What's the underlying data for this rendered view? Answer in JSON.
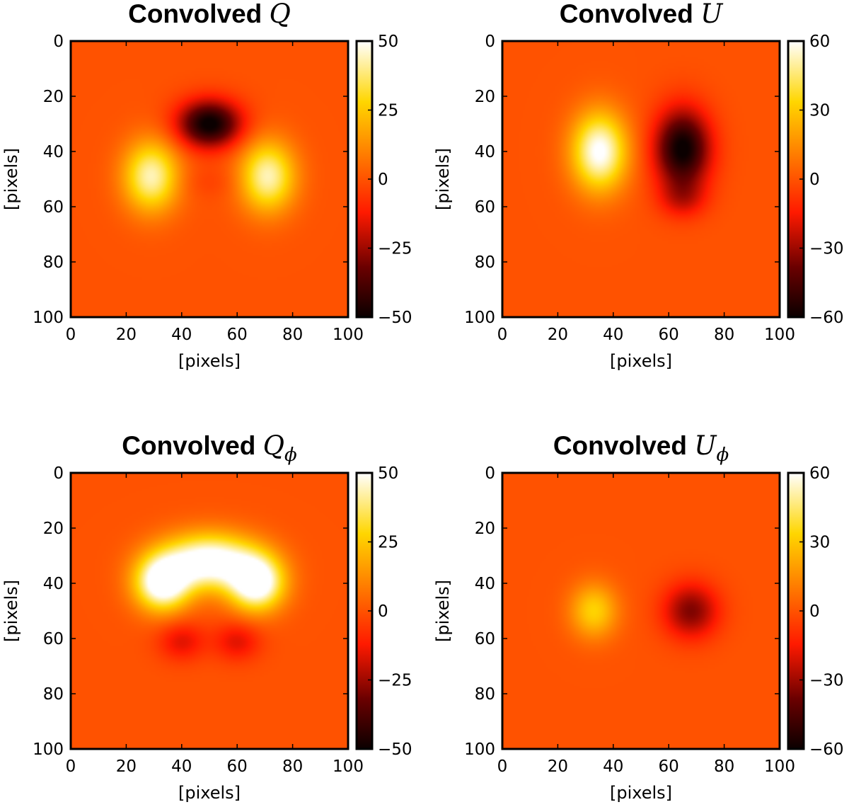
{
  "chart_data": [
    {
      "type": "heatmap",
      "title": "Convolved ",
      "symbol": "Q",
      "subscript": "",
      "xlabel": "[pixels]",
      "ylabel": "[pixels]",
      "xlim": [
        0,
        100
      ],
      "ylim": [
        100,
        0
      ],
      "xticks": [
        "0",
        "20",
        "40",
        "60",
        "80",
        "100"
      ],
      "yticks": [
        "0",
        "20",
        "40",
        "60",
        "80",
        "100"
      ],
      "colormap": "hot",
      "colorbar": {
        "vmin": -50,
        "vmax": 50,
        "ticks": [
          "50",
          "25",
          "0",
          "−25",
          "−50"
        ],
        "tick_values": [
          50,
          25,
          0,
          -25,
          -50
        ]
      },
      "features": [
        {
          "x": 50,
          "y": 30,
          "sx": 8,
          "sy": 6,
          "amp": -52
        },
        {
          "x": 29,
          "y": 49,
          "sx": 7,
          "sy": 9,
          "amp": 44
        },
        {
          "x": 71,
          "y": 49,
          "sx": 7,
          "sy": 9,
          "amp": 44
        },
        {
          "x": 50,
          "y": 51,
          "sx": 8,
          "sy": 4,
          "amp": -4
        }
      ]
    },
    {
      "type": "heatmap",
      "title": "Convolved ",
      "symbol": "U",
      "subscript": "",
      "xlabel": "[pixels]",
      "ylabel": "[pixels]",
      "xlim": [
        0,
        100
      ],
      "ylim": [
        100,
        0
      ],
      "xticks": [
        "0",
        "20",
        "40",
        "60",
        "80",
        "100"
      ],
      "yticks": [
        "0",
        "20",
        "40",
        "60",
        "80",
        "100"
      ],
      "colormap": "hot",
      "colorbar": {
        "vmin": -60,
        "vmax": 60,
        "ticks": [
          "60",
          "30",
          "0",
          "−30",
          "−60"
        ],
        "tick_values": [
          60,
          30,
          0,
          -30,
          -60
        ]
      },
      "features": [
        {
          "x": 35,
          "y": 40,
          "sx": 7,
          "sy": 10,
          "amp": 62
        },
        {
          "x": 65,
          "y": 39,
          "sx": 7,
          "sy": 10,
          "amp": -62
        },
        {
          "x": 65,
          "y": 57,
          "sx": 6,
          "sy": 5,
          "amp": -18
        }
      ]
    },
    {
      "type": "heatmap",
      "title": "Convolved ",
      "symbol": "Q",
      "subscript": "ϕ",
      "xlabel": "[pixels]",
      "ylabel": "[pixels]",
      "xlim": [
        0,
        100
      ],
      "ylim": [
        100,
        0
      ],
      "xticks": [
        "0",
        "20",
        "40",
        "60",
        "80",
        "100"
      ],
      "yticks": [
        "0",
        "20",
        "40",
        "60",
        "80",
        "100"
      ],
      "colormap": "hot",
      "colorbar": {
        "vmin": -50,
        "vmax": 50,
        "ticks": [
          "50",
          "25",
          "0",
          "−25",
          "−50"
        ],
        "tick_values": [
          50,
          25,
          0,
          -25,
          -50
        ]
      },
      "features": [
        {
          "x": 50,
          "y": 32,
          "sx": 12,
          "sy": 7,
          "amp": 58
        },
        {
          "x": 33,
          "y": 40,
          "sx": 7,
          "sy": 7,
          "amp": 58
        },
        {
          "x": 67,
          "y": 40,
          "sx": 7,
          "sy": 7,
          "amp": 58
        },
        {
          "x": 40,
          "y": 61,
          "sx": 6,
          "sy": 5,
          "amp": -16
        },
        {
          "x": 60,
          "y": 61,
          "sx": 6,
          "sy": 5,
          "amp": -16
        }
      ]
    },
    {
      "type": "heatmap",
      "title": "Convolved ",
      "symbol": "U",
      "subscript": "ϕ",
      "xlabel": "[pixels]",
      "ylabel": "[pixels]",
      "xlim": [
        0,
        100
      ],
      "ylim": [
        100,
        0
      ],
      "xticks": [
        "0",
        "20",
        "40",
        "60",
        "80",
        "100"
      ],
      "yticks": [
        "0",
        "20",
        "40",
        "60",
        "80",
        "100"
      ],
      "colormap": "hot",
      "colorbar": {
        "vmin": -60,
        "vmax": 60,
        "ticks": [
          "60",
          "30",
          "0",
          "−30",
          "−60"
        ],
        "tick_values": [
          60,
          30,
          0,
          -30,
          -60
        ]
      },
      "features": [
        {
          "x": 33,
          "y": 50,
          "sx": 6,
          "sy": 7,
          "amp": 33
        },
        {
          "x": 68,
          "y": 50,
          "sx": 7,
          "sy": 7,
          "amp": -35
        }
      ]
    }
  ]
}
